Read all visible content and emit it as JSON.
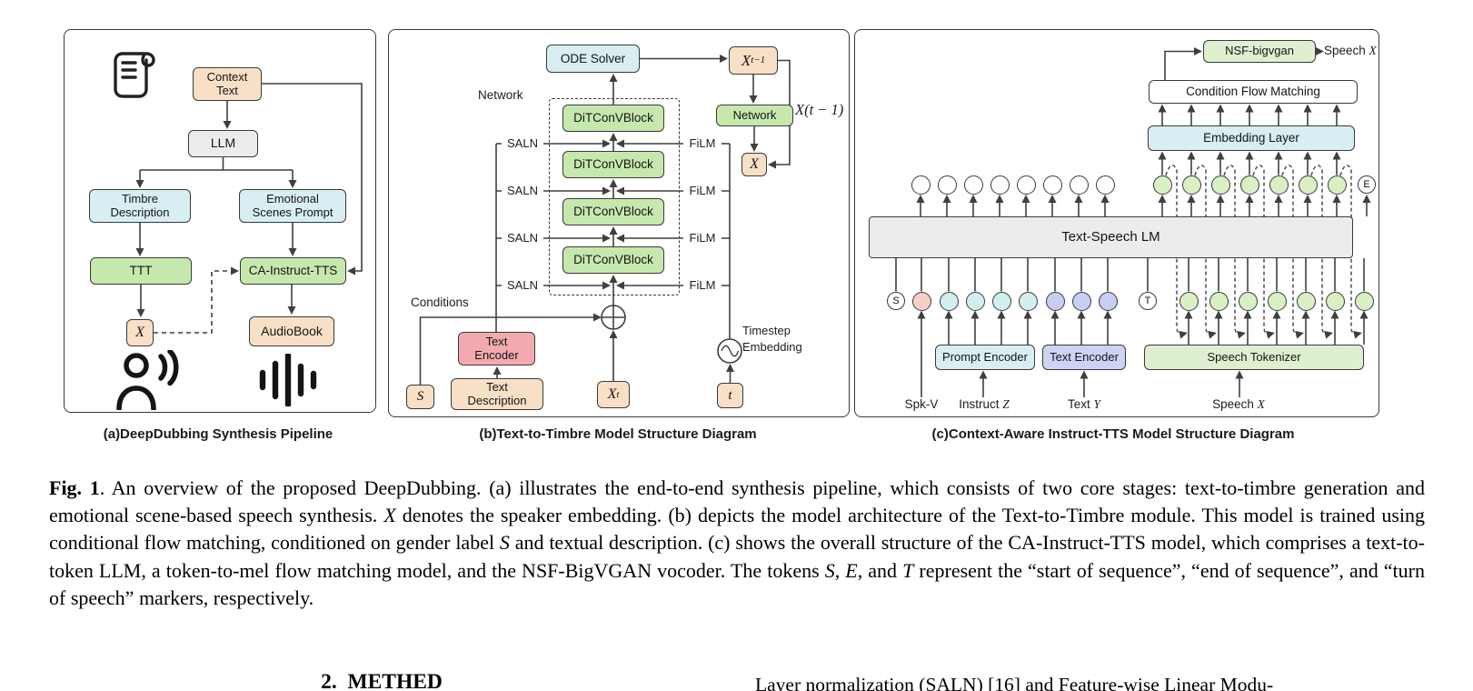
{
  "colors": {
    "peach": "#f8e0c6",
    "gray": "#ececec",
    "cyan": "#d8eef2",
    "green": "#c6e8ad",
    "green_light": "#def0d0",
    "pink": "#f2aab0",
    "purple": "#ced3f5",
    "line": "#3f3f3f",
    "circle_pink": "#f7cfc8",
    "circle_cyan": "#d2eeee",
    "circle_purple": "#c8cdf4",
    "circle_green": "#d9f0c5"
  },
  "a": {
    "context_text": "Context\nText",
    "llm": "LLM",
    "timbre": "Timbre\nDescription",
    "emotional": "Emotional\nScenes Prompt",
    "ttt": "TTT",
    "ca": "CA-Instruct-TTS",
    "x": "X",
    "audiobook": "AudioBook",
    "icons": [
      "scroll-icon",
      "person-speaking-icon",
      "audio-waveform-icon"
    ]
  },
  "b": {
    "ode": "ODE Solver",
    "x_prev_main": "X",
    "x_prev_sub": "t−1",
    "network_box": "Network",
    "x_loop": "X",
    "x_t_minus_1": "X(t − 1)",
    "network_label": "Network",
    "block": "DiTConVBlock",
    "saln": "SALN",
    "film": "FiLM",
    "conditions": "Conditions",
    "text_encoder": "Text\nEncoder",
    "text_description": "Text\nDescription",
    "s": "S",
    "x_t_main": "X",
    "x_t_sub": "t",
    "t": "t",
    "timestep": "Timestep\nEmbedding"
  },
  "c": {
    "nsf": "NSF-bigvgan",
    "speech_out": [
      "Speech ",
      "X"
    ],
    "cfm": "Condition Flow Matching",
    "embedding": "Embedding Layer",
    "lm": "Text-Speech LM",
    "prompt_encoder": "Prompt Encoder",
    "text_encoder": "Text Encoder",
    "speech_tokenizer": "Speech Tokenizer",
    "labels": {
      "spk_v": "Spk-V",
      "instruct": [
        "Instruct ",
        "Z"
      ],
      "text_y": [
        "Text ",
        "Y"
      ],
      "speech_x": [
        "Speech ",
        "X"
      ]
    },
    "start_marker": "S",
    "turn_marker": "T",
    "end_marker": "E",
    "top_row": [
      "white",
      "white",
      "white",
      "white",
      "white",
      "white",
      "white",
      "white",
      "green",
      "green",
      "green",
      "green",
      "green",
      "green",
      "green"
    ],
    "bottom_row": [
      "pink",
      "cyan",
      "cyan",
      "cyan",
      "cyan",
      "purple",
      "purple",
      "purple"
    ],
    "bottom_row_speech": [
      "green",
      "green",
      "green",
      "green",
      "green",
      "green",
      "green"
    ]
  },
  "panel_captions": {
    "a": "(a)DeepDubbing Synthesis Pipeline",
    "b": "(b)Text-to-Timbre Model Structure Diagram",
    "c": "(c)Context-Aware Instruct-TTS Model Structure Diagram"
  },
  "caption": {
    "parts": [
      {
        "t": "Fig. 1",
        "b": 1
      },
      {
        "t": ".  An overview of the proposed DeepDubbing.  (a) illustrates the end-to-end synthesis pipeline, which consists of two core stages: text-to-timbre generation and emotional scene-based speech synthesis. "
      },
      {
        "t": "X",
        "i": 1
      },
      {
        "t": " denotes the speaker embedding. (b) depicts the model architecture of the Text-to-Timbre module. This model is trained using conditional flow matching, conditioned on gender label "
      },
      {
        "t": "S",
        "i": 1
      },
      {
        "t": " and textual description. (c) shows the overall structure of the CA-Instruct-TTS model, which comprises a text-to-token LLM, a token-to-mel flow matching model, and the NSF-BigVGAN vocoder. The tokens "
      },
      {
        "t": "S",
        "i": 1
      },
      {
        "t": ", "
      },
      {
        "t": "E",
        "i": 1
      },
      {
        "t": ", and "
      },
      {
        "t": "T",
        "i": 1
      },
      {
        "t": " represent the “start of sequence”, “end of sequence”, and “turn of speech” markers, respectively."
      }
    ]
  },
  "below": {
    "section_heading": "2.  METHED",
    "right_column": "Layer normalization (SALN) [16] and Feature-wise Linear Modu-"
  }
}
